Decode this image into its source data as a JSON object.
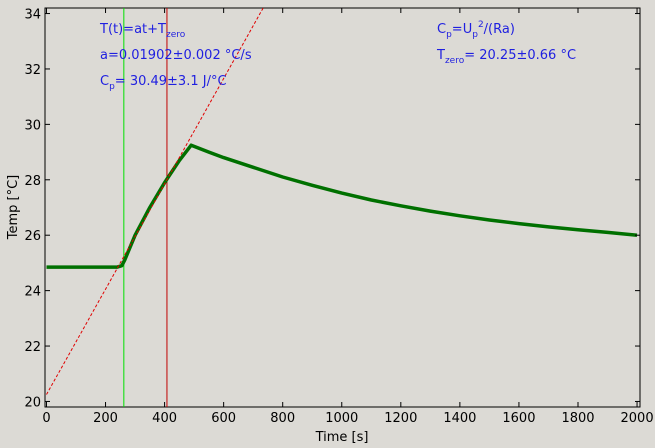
{
  "chart_data": {
    "type": "line",
    "title": "",
    "xlabel": "Time [s]",
    "ylabel": "Temp [°C]",
    "xlim": [
      -5,
      2010
    ],
    "ylim": [
      19.8,
      34.2
    ],
    "xticks": [
      0,
      200,
      400,
      600,
      800,
      1000,
      1200,
      1400,
      1600,
      1800,
      2000
    ],
    "yticks": [
      20,
      22,
      24,
      26,
      28,
      30,
      32,
      34
    ],
    "grid": false,
    "legend": "none",
    "colors": {
      "data": "#007000",
      "fit": "#e00000",
      "vline_start": "#00e000",
      "vline_end": "#c00000",
      "annotation": "#1f1fe0"
    },
    "series": [
      {
        "style": "thick-solid",
        "x": [
          0,
          240,
          255,
          265,
          300,
          350,
          400,
          450,
          490,
          550,
          600,
          700,
          800,
          900,
          1000,
          1100,
          1200,
          1300,
          1400,
          1500,
          1600,
          1700,
          1800,
          1900,
          2000
        ],
        "y": [
          24.85,
          24.85,
          24.9,
          25.1,
          26.0,
          27.0,
          27.9,
          28.7,
          29.25,
          29.0,
          28.8,
          28.45,
          28.1,
          27.8,
          27.52,
          27.27,
          27.06,
          26.87,
          26.7,
          26.55,
          26.42,
          26.3,
          26.2,
          26.1,
          26.0
        ]
      },
      {
        "style": "dashed-fit",
        "x": [
          0,
          740
        ],
        "y": [
          20.25,
          34.32
        ]
      }
    ],
    "vlines": [
      {
        "x": 262,
        "role": "start"
      },
      {
        "x": 408,
        "role": "end"
      }
    ],
    "annotations": {
      "left": [
        {
          "main": "T(t)=at+T",
          "sub": "zero",
          "tail": ""
        },
        {
          "main": "a=0.01902±0.002 °C/s",
          "sub": "",
          "tail": ""
        },
        {
          "main": "C",
          "sub": "p",
          "tail": "= 30.49±3.1 J/°C"
        }
      ],
      "right": [
        {
          "main": "C",
          "sub": "p",
          "tail": "=U",
          "sub2": "p",
          "sup": "2",
          "tail2": "/(Ra)"
        },
        {
          "main": "T",
          "sub": "zero",
          "tail": "= 20.25±0.66 °C"
        }
      ]
    }
  }
}
